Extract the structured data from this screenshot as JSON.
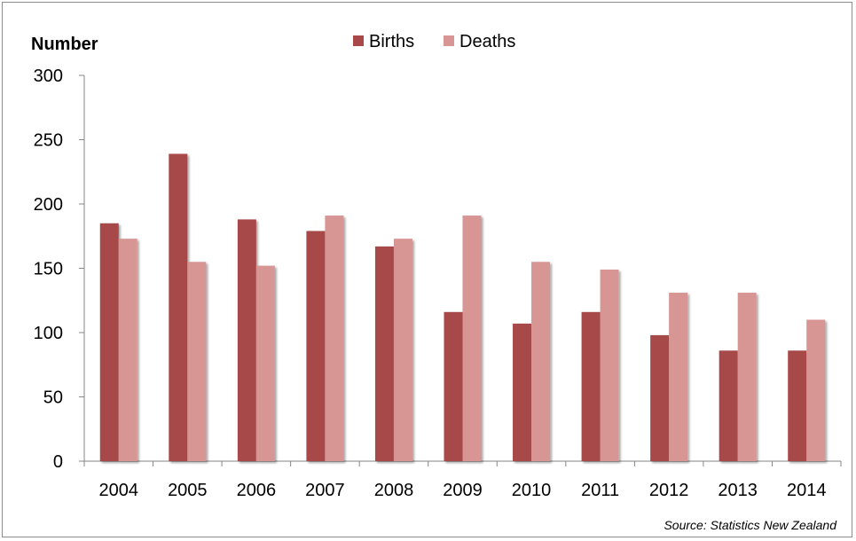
{
  "chart_data": {
    "type": "bar",
    "title": "",
    "ylabel": "Number",
    "xlabel": "",
    "categories": [
      "2004",
      "2005",
      "2006",
      "2007",
      "2008",
      "2009",
      "2010",
      "2011",
      "2012",
      "2013",
      "2014"
    ],
    "series": [
      {
        "name": "Births",
        "color": "#a84848",
        "values": [
          185,
          239,
          188,
          179,
          167,
          116,
          107,
          116,
          98,
          86,
          86
        ]
      },
      {
        "name": "Deaths",
        "color": "#d79594",
        "values": [
          173,
          155,
          152,
          191,
          173,
          191,
          155,
          149,
          131,
          131,
          110
        ]
      }
    ],
    "ylim": [
      0,
      300
    ],
    "yticks": [
      0,
      50,
      100,
      150,
      200,
      250,
      300
    ],
    "grid": false,
    "legend_position": "top-center",
    "source": "Source: Statistics New Zealand"
  }
}
